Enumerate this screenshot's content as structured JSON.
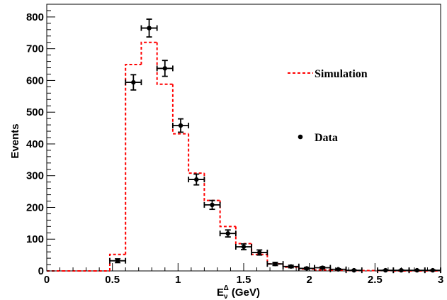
{
  "chart_data": {
    "type": "histogram",
    "xlabel": "E",
    "xlabel_sub": "ν",
    "xlabel_sup": "Δ",
    "xlabel_unit": " (GeV)",
    "ylabel": "Events",
    "xlim": [
      0,
      3
    ],
    "ylim": [
      0,
      840
    ],
    "x_ticks": [
      0,
      0.5,
      1,
      1.5,
      2,
      2.5,
      3
    ],
    "x_tick_labels": [
      "0",
      "0.5",
      "1",
      "1.5",
      "2",
      "2.5",
      "3"
    ],
    "y_ticks": [
      0,
      100,
      200,
      300,
      400,
      500,
      600,
      700,
      800
    ],
    "y_tick_labels": [
      "0",
      "100",
      "200",
      "300",
      "400",
      "500",
      "600",
      "700",
      "800"
    ],
    "bin_edges": [
      0,
      0.12,
      0.24,
      0.36,
      0.48,
      0.6,
      0.72,
      0.84,
      0.96,
      1.08,
      1.2,
      1.32,
      1.44,
      1.56,
      1.68,
      1.8,
      1.92,
      2.04,
      2.16,
      2.28,
      2.4,
      2.52,
      2.64,
      2.76,
      2.88,
      3.0
    ],
    "legend_position": "right",
    "series": [
      {
        "name": "Simulation",
        "style": "dashed-step",
        "color": "#ff0000",
        "values": [
          0,
          0,
          0,
          0,
          52,
          650,
          720,
          588,
          432,
          308,
          222,
          140,
          86,
          52,
          22,
          12,
          6,
          3,
          2,
          1,
          1,
          1,
          0,
          0,
          0
        ]
      },
      {
        "name": "Data",
        "style": "points-with-error-bars",
        "color": "#000000",
        "values": [
          0,
          0,
          0,
          0,
          32,
          594,
          765,
          638,
          458,
          288,
          208,
          118,
          76,
          58,
          22,
          14,
          8,
          10,
          5,
          2,
          0,
          2,
          2,
          2,
          2
        ],
        "errors": [
          0,
          0,
          0,
          0,
          6,
          24,
          28,
          25,
          21,
          17,
          14,
          11,
          9,
          8,
          5,
          4,
          3,
          3,
          2,
          1,
          0,
          1,
          1,
          1,
          1
        ]
      }
    ]
  }
}
